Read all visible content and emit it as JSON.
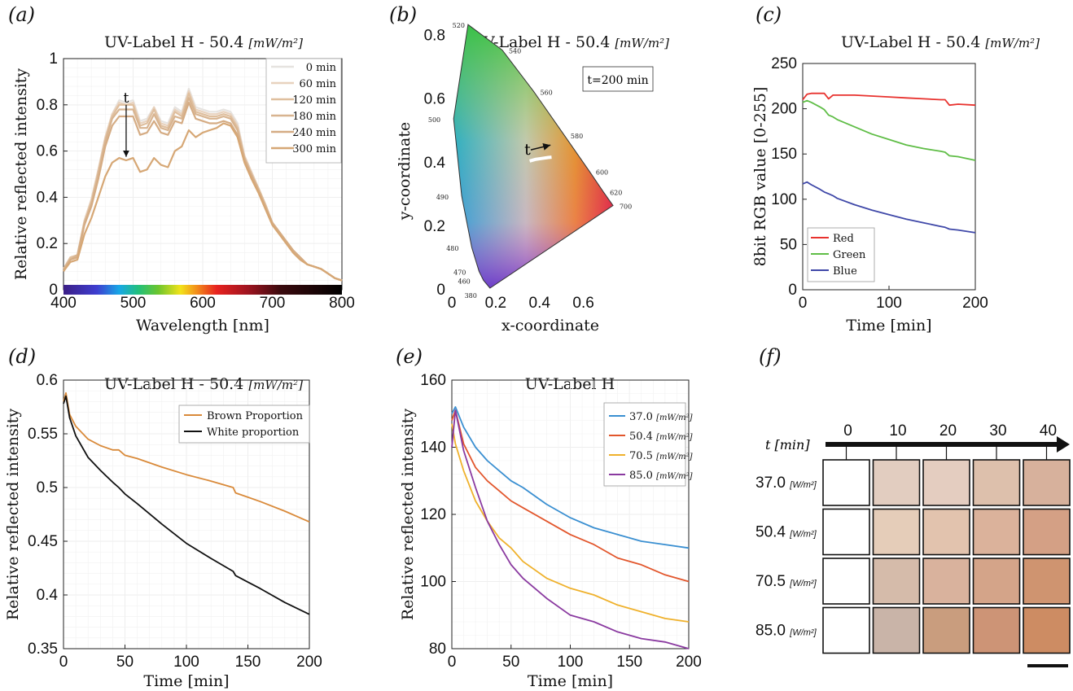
{
  "chart_data": [
    {
      "type": "line",
      "label": "(a)",
      "title": "UV-Label H - 50.4",
      "title_unit": "[mW/m²]",
      "xlabel": "Wavelength [nm]",
      "ylabel": "Relative reflected intensity",
      "xlim": [
        400,
        800
      ],
      "ylim": [
        0,
        1
      ],
      "xticks": [
        400,
        500,
        600,
        700,
        800
      ],
      "yticks": [
        0,
        0.2,
        0.4,
        0.6,
        0.8,
        1
      ],
      "grid": true,
      "legend_position": "top-right",
      "annotation": "t",
      "x": [
        400,
        410,
        420,
        430,
        440,
        450,
        460,
        470,
        480,
        490,
        500,
        510,
        520,
        530,
        540,
        550,
        560,
        570,
        580,
        590,
        600,
        610,
        620,
        630,
        640,
        650,
        660,
        670,
        680,
        690,
        700,
        710,
        720,
        730,
        740,
        750,
        760,
        770,
        780,
        790,
        800
      ],
      "series": [
        {
          "name": "0 min",
          "color": "#e6e3e0",
          "values": [
            0.09,
            0.14,
            0.15,
            0.3,
            0.39,
            0.52,
            0.66,
            0.76,
            0.82,
            0.81,
            0.82,
            0.73,
            0.74,
            0.79,
            0.73,
            0.72,
            0.79,
            0.77,
            0.87,
            0.79,
            0.78,
            0.77,
            0.77,
            0.78,
            0.77,
            0.72,
            0.58,
            0.51,
            0.44,
            0.37,
            0.29,
            0.25,
            0.21,
            0.17,
            0.14,
            0.11,
            0.1,
            0.09,
            0.07,
            0.05,
            0.04
          ]
        },
        {
          "name": "60 min",
          "color": "#e8d2be",
          "values": [
            0.09,
            0.14,
            0.15,
            0.3,
            0.39,
            0.52,
            0.66,
            0.76,
            0.81,
            0.8,
            0.81,
            0.72,
            0.73,
            0.79,
            0.72,
            0.71,
            0.78,
            0.76,
            0.86,
            0.78,
            0.77,
            0.76,
            0.76,
            0.77,
            0.76,
            0.71,
            0.58,
            0.51,
            0.44,
            0.37,
            0.29,
            0.25,
            0.21,
            0.17,
            0.14,
            0.11,
            0.1,
            0.09,
            0.07,
            0.05,
            0.04
          ]
        },
        {
          "name": "120 min",
          "color": "#dfbf9e",
          "values": [
            0.09,
            0.14,
            0.15,
            0.29,
            0.38,
            0.51,
            0.65,
            0.75,
            0.8,
            0.8,
            0.8,
            0.71,
            0.72,
            0.78,
            0.71,
            0.7,
            0.77,
            0.75,
            0.85,
            0.77,
            0.76,
            0.75,
            0.75,
            0.76,
            0.75,
            0.7,
            0.57,
            0.5,
            0.44,
            0.37,
            0.29,
            0.25,
            0.21,
            0.17,
            0.14,
            0.11,
            0.1,
            0.09,
            0.07,
            0.05,
            0.04
          ]
        },
        {
          "name": "180 min",
          "color": "#d8b490",
          "values": [
            0.09,
            0.13,
            0.15,
            0.29,
            0.37,
            0.5,
            0.64,
            0.74,
            0.78,
            0.78,
            0.78,
            0.7,
            0.7,
            0.76,
            0.7,
            0.69,
            0.75,
            0.74,
            0.83,
            0.76,
            0.75,
            0.74,
            0.74,
            0.75,
            0.74,
            0.69,
            0.57,
            0.5,
            0.43,
            0.36,
            0.29,
            0.25,
            0.21,
            0.17,
            0.14,
            0.11,
            0.1,
            0.09,
            0.07,
            0.05,
            0.04
          ]
        },
        {
          "name": "240 min",
          "color": "#d5ac84",
          "values": [
            0.08,
            0.13,
            0.14,
            0.28,
            0.36,
            0.48,
            0.62,
            0.71,
            0.75,
            0.75,
            0.75,
            0.67,
            0.68,
            0.73,
            0.68,
            0.67,
            0.73,
            0.72,
            0.81,
            0.74,
            0.73,
            0.72,
            0.72,
            0.73,
            0.72,
            0.67,
            0.56,
            0.49,
            0.43,
            0.36,
            0.29,
            0.25,
            0.21,
            0.17,
            0.14,
            0.11,
            0.1,
            0.09,
            0.07,
            0.05,
            0.04
          ]
        },
        {
          "name": "300 min",
          "color": "#d6a775",
          "values": [
            0.08,
            0.12,
            0.13,
            0.24,
            0.31,
            0.4,
            0.49,
            0.55,
            0.57,
            0.56,
            0.57,
            0.51,
            0.52,
            0.57,
            0.54,
            0.53,
            0.6,
            0.62,
            0.69,
            0.66,
            0.68,
            0.69,
            0.7,
            0.72,
            0.71,
            0.66,
            0.55,
            0.48,
            0.42,
            0.35,
            0.28,
            0.24,
            0.2,
            0.16,
            0.13,
            0.11,
            0.1,
            0.09,
            0.07,
            0.05,
            0.04
          ]
        }
      ]
    },
    {
      "type": "scatter",
      "label": "(b)",
      "title": "UV-Label H - 50.4",
      "title_unit": "[mW/m²]",
      "xlabel": "x-coordinate",
      "ylabel": "y-coordinate",
      "xlim": [
        0,
        0.75
      ],
      "ylim": [
        0,
        0.85
      ],
      "xticks": [
        0,
        0.2,
        0.4,
        0.6
      ],
      "yticks": [
        0,
        0.2,
        0.4,
        0.6,
        0.8
      ],
      "annotation_box": "t=200 min",
      "annotation": "t",
      "locus_labels": [
        {
          "nm": "380",
          "x": 0.174,
          "y": 0.005
        },
        {
          "nm": "460",
          "x": 0.144,
          "y": 0.03
        },
        {
          "nm": "470",
          "x": 0.124,
          "y": 0.058
        },
        {
          "nm": "480",
          "x": 0.091,
          "y": 0.133
        },
        {
          "nm": "490",
          "x": 0.045,
          "y": 0.295
        },
        {
          "nm": "500",
          "x": 0.008,
          "y": 0.538
        },
        {
          "nm": "520",
          "x": 0.074,
          "y": 0.834
        },
        {
          "nm": "540",
          "x": 0.23,
          "y": 0.754
        },
        {
          "nm": "560",
          "x": 0.373,
          "y": 0.624
        },
        {
          "nm": "580",
          "x": 0.512,
          "y": 0.487
        },
        {
          "nm": "600",
          "x": 0.627,
          "y": 0.373
        },
        {
          "nm": "620",
          "x": 0.691,
          "y": 0.308
        },
        {
          "nm": "700",
          "x": 0.735,
          "y": 0.265
        }
      ],
      "trajectory": {
        "x": [
          0.355,
          0.38,
          0.41,
          0.44,
          0.455
        ],
        "y": [
          0.405,
          0.41,
          0.413,
          0.416,
          0.417
        ]
      }
    },
    {
      "type": "line",
      "label": "(c)",
      "title": "UV-Label H - 50.4",
      "title_unit": "[mW/m²]",
      "xlabel": "Time [min]",
      "ylabel": "8bit RGB value [0-255]",
      "xlim": [
        0,
        200
      ],
      "ylim": [
        0,
        250
      ],
      "xticks": [
        0,
        100,
        200
      ],
      "yticks": [
        0,
        50,
        100,
        150,
        200,
        250
      ],
      "legend_position": "bottom-left",
      "x": [
        0,
        5,
        10,
        20,
        25,
        30,
        35,
        40,
        60,
        80,
        100,
        120,
        140,
        160,
        165,
        170,
        180,
        200
      ],
      "series": [
        {
          "name": "Red",
          "color": "#e8322e",
          "values": [
            210,
            216,
            217,
            217,
            217,
            211,
            215,
            215,
            215,
            214,
            213,
            212,
            211,
            210,
            210,
            204,
            205,
            204
          ]
        },
        {
          "name": "Green",
          "color": "#5fbd46",
          "values": [
            207,
            209,
            207,
            202,
            199,
            193,
            191,
            188,
            180,
            172,
            166,
            160,
            156,
            153,
            152,
            148,
            147,
            143
          ]
        },
        {
          "name": "Blue",
          "color": "#3f48a8",
          "values": [
            117,
            119,
            116,
            111,
            108,
            106,
            104,
            101,
            94,
            88,
            83,
            78,
            74,
            70,
            69,
            67,
            66,
            63
          ]
        }
      ]
    },
    {
      "type": "line",
      "label": "(d)",
      "title": "UV-Label H - 50.4",
      "title_unit": "[mW/m²]",
      "xlabel": "Time [min]",
      "ylabel": "Relative reflected intensity",
      "xlim": [
        0,
        200
      ],
      "ylim": [
        0.35,
        0.6
      ],
      "xticks": [
        0,
        50,
        100,
        150,
        200
      ],
      "yticks": [
        0.35,
        0.4,
        0.45,
        0.5,
        0.55,
        0.6
      ],
      "grid": true,
      "legend_position": "top-right",
      "x": [
        0,
        2,
        5,
        10,
        20,
        30,
        40,
        45,
        50,
        60,
        80,
        100,
        120,
        138,
        140,
        150,
        160,
        180,
        200
      ],
      "series": [
        {
          "name": "Brown Proportion",
          "color": "#d98a3a",
          "values": [
            0.58,
            0.588,
            0.568,
            0.557,
            0.545,
            0.539,
            0.535,
            0.535,
            0.53,
            0.527,
            0.519,
            0.512,
            0.506,
            0.5,
            0.495,
            0.491,
            0.487,
            0.478,
            0.468
          ]
        },
        {
          "name": "White proportion",
          "color": "#111111",
          "values": [
            0.578,
            0.585,
            0.565,
            0.548,
            0.528,
            0.516,
            0.505,
            0.5,
            0.494,
            0.485,
            0.466,
            0.448,
            0.434,
            0.422,
            0.418,
            0.412,
            0.406,
            0.393,
            0.382
          ]
        }
      ]
    },
    {
      "type": "line",
      "label": "(e)",
      "title": "UV-Label H",
      "xlabel": "Time [min]",
      "ylabel": "Relative reflected intensity",
      "xlim": [
        0,
        200
      ],
      "ylim": [
        80,
        160
      ],
      "xticks": [
        0,
        50,
        100,
        150,
        200
      ],
      "yticks": [
        80,
        100,
        120,
        140,
        160
      ],
      "grid": true,
      "legend_position": "top-right",
      "legend_unit": "[mW/m²]",
      "x": [
        0,
        3,
        10,
        20,
        30,
        40,
        50,
        60,
        80,
        100,
        120,
        140,
        160,
        180,
        200
      ],
      "series": [
        {
          "name": "37.0",
          "color": "#3a8fd1",
          "values": [
            150,
            152,
            146,
            140,
            136,
            133,
            130,
            128,
            123,
            119,
            116,
            114,
            112,
            111,
            110
          ]
        },
        {
          "name": "50.4",
          "color": "#e2562c",
          "values": [
            148,
            151,
            141,
            134,
            130,
            127,
            124,
            122,
            118,
            114,
            111,
            107,
            105,
            102,
            100
          ]
        },
        {
          "name": "70.5",
          "color": "#efb12c",
          "values": [
            147,
            141,
            133,
            124,
            118,
            113,
            110,
            106,
            101,
            98,
            96,
            93,
            91,
            89,
            88
          ]
        },
        {
          "name": "85.0",
          "color": "#8a3aa0",
          "values": [
            140,
            151,
            139,
            128,
            118,
            111,
            105,
            101,
            95,
            90,
            88,
            85,
            83,
            82,
            80
          ]
        }
      ]
    },
    {
      "type": "table",
      "label": "(f)",
      "axis_label": "t [min]",
      "time_labels": [
        "0",
        "10",
        "20",
        "30",
        "40"
      ],
      "row_unit": "[W/m²]",
      "rows": [
        {
          "name": "37.0",
          "colors": [
            "#ffffff",
            "#e2cdc0",
            "#e4cdc0",
            "#ddc0ac",
            "#d7b19c"
          ]
        },
        {
          "name": "50.4",
          "colors": [
            "#ffffff",
            "#e5cdb9",
            "#e2c3ae",
            "#dbb29b",
            "#d4a085"
          ]
        },
        {
          "name": "70.5",
          "colors": [
            "#ffffff",
            "#d5bbaa",
            "#d9b29d",
            "#d4a489",
            "#cf9470"
          ]
        },
        {
          "name": "85.0",
          "colors": [
            "#ffffff",
            "#c9b4a8",
            "#c99d7e",
            "#cd9476",
            "#cd8c63"
          ]
        }
      ]
    }
  ]
}
